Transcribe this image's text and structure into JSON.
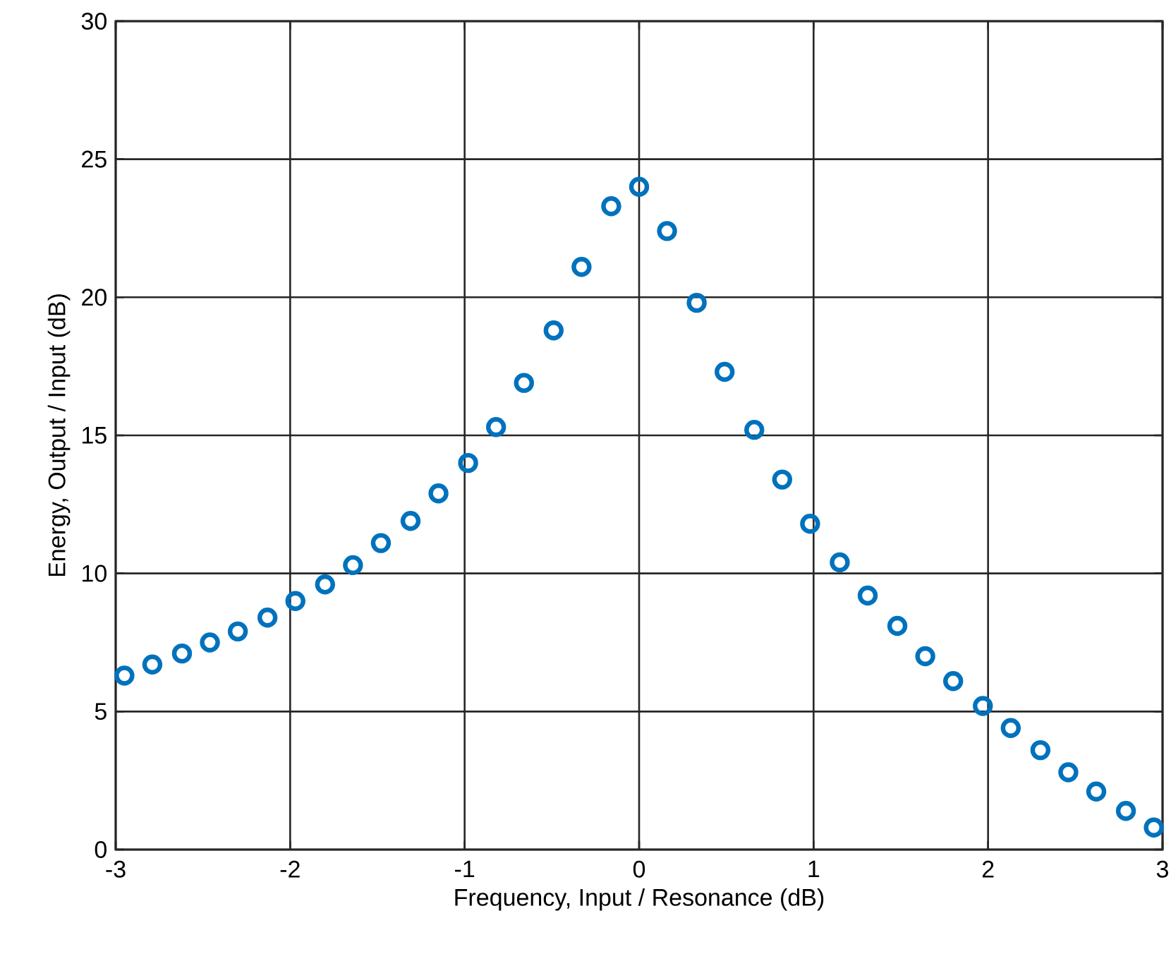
{
  "chart_data": {
    "type": "scatter",
    "xlabel": "Frequency, Input / Resonance (dB)",
    "ylabel": "Energy, Output / Input (dB)",
    "x": [
      -2.95,
      -2.79,
      -2.62,
      -2.46,
      -2.3,
      -2.13,
      -1.97,
      -1.8,
      -1.64,
      -1.48,
      -1.31,
      -1.15,
      -0.98,
      -0.82,
      -0.66,
      -0.49,
      -0.33,
      -0.16,
      0,
      0.16,
      0.33,
      0.49,
      0.66,
      0.82,
      0.98,
      1.15,
      1.31,
      1.48,
      1.64,
      1.8,
      1.97,
      2.13,
      2.3,
      2.46,
      2.62,
      2.79,
      2.95
    ],
    "series": [
      {
        "color": "#0072bd",
        "values": [
          6.3,
          6.7,
          7.1,
          7.5,
          7.9,
          8.4,
          9.0,
          9.6,
          10.3,
          11.1,
          11.9,
          12.9,
          14.0,
          15.3,
          16.9,
          18.8,
          21.1,
          23.3,
          24.0,
          22.4,
          19.8,
          17.3,
          15.2,
          13.4,
          11.8,
          10.4,
          9.2,
          8.1,
          7.0,
          6.1,
          5.2,
          4.4,
          3.6,
          2.8,
          2.1,
          1.4,
          0.8
        ]
      }
    ],
    "xlim": [
      -3,
      3
    ],
    "ylim": [
      0,
      30
    ],
    "xticks": [
      -3,
      -2,
      -1,
      0,
      1,
      2,
      3
    ],
    "yticks": [
      0,
      5,
      10,
      15,
      20,
      25,
      30
    ],
    "grid": true,
    "marker": "circle"
  }
}
